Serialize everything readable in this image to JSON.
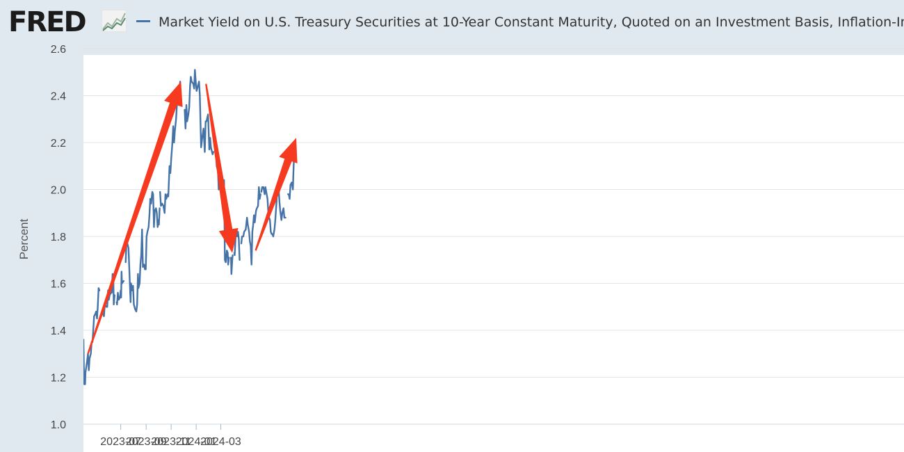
{
  "header": {
    "logo_text": "FRED",
    "logo_icon": "line-graph-icon"
  },
  "chart_data": {
    "type": "line",
    "title": "",
    "xlabel": "",
    "ylabel": "Percent",
    "ylim": [
      1.0,
      2.6
    ],
    "xlim": [
      "2023-04-01",
      "2024-04-18"
    ],
    "y_ticks": [
      "1.0",
      "1.2",
      "1.4",
      "1.6",
      "1.8",
      "2.0",
      "2.2",
      "2.4",
      "2.6"
    ],
    "x_ticks": [
      "2023-07",
      "2023-09",
      "2023-11",
      "2024-01",
      "2024-03"
    ],
    "grid": true,
    "legend": {
      "position": "top",
      "entries": [
        "Market Yield on U.S. Treasury Securities at 10-Year Constant Maturity, Quoted on an Investment Basis, Inflation-Indexed"
      ]
    },
    "series": [
      {
        "name": "Market Yield on U.S. Treasury Securities at 10-Year Constant Maturity, Quoted on an Investment Basis, Inflation-Indexed",
        "color": "#4572a7",
        "points": [
          [
            "2023-04-01",
            1.36
          ],
          [
            "2023-04-02",
            1.24
          ],
          [
            "2023-04-03",
            1.17
          ],
          [
            "2023-04-05",
            1.17
          ],
          [
            "2023-04-06",
            1.22
          ],
          [
            "2023-04-10",
            1.27
          ],
          [
            "2023-04-12",
            1.3
          ],
          [
            "2023-04-14",
            1.23
          ],
          [
            "2023-04-16",
            1.28
          ],
          [
            "2023-04-19",
            1.3
          ],
          [
            "2023-04-21",
            1.35
          ],
          [
            "2023-04-23",
            1.35
          ],
          [
            "2023-04-25",
            1.4
          ],
          [
            "2023-04-27",
            1.46
          ],
          [
            "2023-04-30",
            1.47
          ],
          [
            "2023-05-02",
            1.48
          ],
          [
            "2023-05-04",
            1.45
          ],
          [
            "2023-05-06",
            1.5
          ],
          [
            "2023-05-08",
            1.58
          ],
          [
            "2023-05-10",
            1.57
          ],
          null,
          [
            "2023-05-19",
            1.47
          ],
          [
            "2023-05-21",
            1.46
          ],
          [
            "2023-05-23",
            1.51
          ],
          [
            "2023-05-27",
            1.5
          ],
          [
            "2023-05-29",
            1.5
          ],
          [
            "2023-05-31",
            1.57
          ],
          [
            "2023-06-02",
            1.53
          ],
          [
            "2023-06-04",
            1.55
          ],
          [
            "2023-06-07",
            1.56
          ],
          [
            "2023-06-09",
            1.56
          ],
          [
            "2023-06-11",
            1.64
          ],
          [
            "2023-06-13",
            1.62
          ],
          [
            "2023-06-14",
            1.51
          ],
          [
            "2023-06-16",
            1.55
          ],
          null,
          [
            "2023-06-21",
            1.52
          ],
          [
            "2023-06-22",
            1.51
          ],
          [
            "2023-06-24",
            1.56
          ],
          [
            "2023-06-26",
            1.53
          ],
          [
            "2023-06-29",
            1.54
          ],
          [
            "2023-07-01",
            1.57
          ],
          [
            "2023-07-02",
            1.54
          ],
          [
            "2023-07-03",
            1.65
          ],
          [
            "2023-07-04",
            1.6
          ],
          [
            "2023-07-08",
            1.61
          ],
          null,
          [
            "2023-07-13",
            1.69
          ],
          [
            "2023-07-15",
            1.78
          ],
          [
            "2023-07-17",
            1.77
          ],
          [
            "2023-07-20",
            1.75
          ],
          [
            "2023-07-23",
            1.61
          ],
          [
            "2023-07-25",
            1.52
          ],
          [
            "2023-07-26",
            1.6
          ],
          [
            "2023-07-29",
            1.57
          ],
          [
            "2023-07-31",
            1.59
          ],
          [
            "2023-08-02",
            1.51
          ],
          [
            "2023-08-05",
            1.49
          ],
          [
            "2023-08-08",
            1.48
          ],
          [
            "2023-08-10",
            1.51
          ],
          [
            "2023-08-12",
            1.64
          ],
          [
            "2023-08-13",
            1.58
          ],
          [
            "2023-08-16",
            1.6
          ],
          [
            "2023-08-18",
            1.68
          ],
          [
            "2023-08-20",
            1.72
          ],
          [
            "2023-08-22",
            1.83
          ],
          [
            "2023-08-24",
            1.67
          ],
          [
            "2023-08-27",
            1.68
          ],
          [
            "2023-08-29",
            1.66
          ],
          [
            "2023-08-31",
            1.66
          ],
          [
            "2023-09-02",
            1.8
          ],
          [
            "2023-09-04",
            1.82
          ],
          [
            "2023-09-07",
            1.84
          ],
          [
            "2023-09-09",
            1.89
          ],
          [
            "2023-09-11",
            1.96
          ],
          [
            "2023-09-13",
            1.94
          ],
          [
            "2023-09-16",
            1.99
          ],
          [
            "2023-09-18",
            1.98
          ],
          [
            "2023-09-20",
            1.84
          ],
          [
            "2023-09-22",
            1.91
          ],
          [
            "2023-09-25",
            1.92
          ],
          [
            "2023-09-27",
            1.9
          ],
          [
            "2023-09-29",
            1.84
          ],
          [
            "2023-10-01",
            1.87
          ],
          [
            "2023-10-02",
            1.85
          ],
          [
            "2023-10-04",
            1.92
          ],
          null,
          [
            "2023-10-05",
            1.99
          ],
          [
            "2023-10-07",
            1.93
          ],
          [
            "2023-10-10",
            1.94
          ],
          [
            "2023-10-13",
            1.93
          ],
          [
            "2023-10-16",
            1.9
          ],
          [
            "2023-10-18",
            1.98
          ],
          [
            "2023-10-20",
            1.96
          ],
          [
            "2023-10-23",
            1.98
          ],
          [
            "2023-10-25",
            1.97
          ],
          [
            "2023-10-28",
            2.1
          ],
          [
            "2023-10-30",
            2.07
          ],
          [
            "2023-11-01",
            2.13
          ],
          [
            "2023-11-04",
            2.2
          ],
          [
            "2023-11-06",
            2.27
          ],
          [
            "2023-11-08",
            2.2
          ],
          [
            "2023-11-10",
            2.25
          ],
          [
            "2023-11-13",
            2.3
          ],
          [
            "2023-11-15",
            2.36
          ],
          [
            "2023-11-17",
            2.41
          ],
          [
            "2023-11-19",
            2.39
          ],
          [
            "2023-11-21",
            2.42
          ],
          [
            "2023-11-23",
            2.46
          ],
          null,
          [
            "2023-12-04",
            2.34
          ],
          [
            "2023-12-06",
            2.26
          ],
          [
            "2023-12-08",
            2.36
          ],
          [
            "2023-12-10",
            2.29
          ],
          [
            "2023-12-13",
            2.32
          ],
          [
            "2023-12-15",
            2.35
          ],
          [
            "2023-12-17",
            2.44
          ],
          [
            "2023-12-19",
            2.48
          ],
          [
            "2023-12-21",
            2.46
          ],
          [
            "2023-12-25",
            2.45
          ],
          [
            "2023-12-27",
            2.43
          ],
          [
            "2023-12-29",
            2.51
          ],
          [
            "2023-12-31",
            2.46
          ],
          [
            "2024-01-02",
            2.42
          ],
          [
            "2024-01-05",
            2.44
          ],
          [
            "2024-01-08",
            2.46
          ],
          [
            "2024-01-10",
            2.4
          ],
          [
            "2024-01-13",
            2.18
          ],
          [
            "2024-01-15",
            2.21
          ],
          [
            "2024-01-19",
            2.26
          ],
          [
            "2024-01-22",
            2.16
          ],
          [
            "2024-01-24",
            2.29
          ],
          [
            "2024-01-26",
            2.29
          ],
          [
            "2024-01-30",
            2.32
          ],
          [
            "2024-02-02",
            2.17
          ],
          [
            "2024-02-04",
            2.22
          ],
          [
            "2024-02-06",
            2.18
          ],
          [
            "2024-02-10",
            2.15
          ],
          [
            "2024-02-12",
            2.16
          ],
          null,
          [
            "2024-02-15",
            2.19
          ],
          [
            "2024-02-17",
            2.22
          ],
          [
            "2024-02-20",
            2.1
          ],
          [
            "2024-02-23",
            2.08
          ],
          [
            "2024-02-25",
            2.0
          ],
          [
            "2024-02-27",
            2.05
          ],
          [
            "2024-03-01",
            2.02
          ],
          [
            "2024-03-04",
            2.01
          ],
          [
            "2024-03-06",
            2.04
          ],
          [
            "2024-03-09",
            2.04
          ],
          [
            "2024-03-11",
            1.7
          ],
          [
            "2024-03-13",
            1.69
          ],
          [
            "2024-03-16",
            1.74
          ],
          [
            "2024-03-18",
            1.73
          ],
          [
            "2024-03-19",
            1.68
          ],
          [
            "2024-03-21",
            1.71
          ],
          null,
          [
            "2024-03-26",
            1.71
          ],
          [
            "2024-03-27",
            1.64
          ],
          [
            "2024-03-29",
            1.7
          ],
          [
            "2024-03-30",
            1.72
          ],
          null,
          [
            "2024-04-03",
            1.73
          ],
          [
            "2024-04-04",
            1.72
          ],
          [
            "2024-04-07",
            1.83
          ],
          [
            "2024-04-10",
            1.8
          ],
          [
            "2024-04-12",
            1.82
          ],
          [
            "2024-04-14",
            1.79
          ],
          [
            "2024-04-16",
            1.7
          ],
          null,
          [
            "2024-04-20",
            1.77
          ],
          [
            "2024-04-22",
            1.8
          ],
          [
            "2024-04-25",
            1.8
          ],
          [
            "2024-04-27",
            1.82
          ],
          [
            "2024-05-01",
            1.83
          ],
          [
            "2024-05-04",
            1.88
          ],
          [
            "2024-05-06",
            1.85
          ],
          [
            "2024-05-09",
            1.82
          ],
          [
            "2024-05-11",
            1.78
          ],
          [
            "2024-05-13",
            1.76
          ],
          [
            "2024-05-15",
            1.68
          ],
          [
            "2024-05-17",
            1.82
          ],
          [
            "2024-05-19",
            1.85
          ],
          [
            "2024-05-21",
            1.89
          ],
          [
            "2024-05-23",
            1.86
          ],
          [
            "2024-05-26",
            1.91
          ],
          [
            "2024-05-28",
            1.92
          ],
          [
            "2024-05-31",
            1.93
          ],
          [
            "2024-06-02",
            2.01
          ],
          [
            "2024-06-04",
            1.96
          ],
          [
            "2024-06-06",
            1.98
          ],
          null,
          [
            "2024-06-08",
            1.99
          ],
          [
            "2024-06-10",
            2.01
          ],
          [
            "2024-06-13",
            2.01
          ],
          [
            "2024-06-14",
            2.0
          ],
          [
            "2024-06-16",
            1.98
          ],
          [
            "2024-06-18",
            2.01
          ],
          [
            "2024-06-21",
            1.98
          ],
          [
            "2024-06-23",
            1.96
          ],
          [
            "2024-06-25",
            1.9
          ],
          [
            "2024-06-27",
            1.88
          ],
          [
            "2024-06-29",
            1.87
          ],
          [
            "2024-07-01",
            1.82
          ],
          [
            "2024-07-03",
            1.81
          ],
          [
            "2024-07-05",
            1.81
          ],
          [
            "2024-07-07",
            1.8
          ],
          [
            "2024-07-10",
            1.83
          ],
          [
            "2024-07-12",
            1.87
          ],
          [
            "2024-07-15",
            1.95
          ],
          [
            "2024-07-17",
            2.0
          ],
          [
            "2024-07-20",
            2.01
          ],
          [
            "2024-07-22",
            1.95
          ],
          [
            "2024-07-24",
            1.91
          ],
          [
            "2024-07-27",
            1.87
          ],
          [
            "2024-07-29",
            1.9
          ],
          [
            "2024-08-01",
            1.92
          ],
          [
            "2024-08-03",
            1.88
          ],
          [
            "2024-08-06",
            1.88
          ],
          null,
          [
            "2024-08-12",
            1.98
          ],
          [
            "2024-08-14",
            1.98
          ],
          [
            "2024-08-16",
            1.96
          ],
          [
            "2024-08-18",
            2.02
          ],
          [
            "2024-08-21",
            2.03
          ],
          [
            "2024-08-24",
            2.0
          ],
          [
            "2024-08-25",
            2.06
          ],
          [
            "2024-08-26",
            2.11
          ],
          [
            "2024-08-27",
            2.14
          ],
          [
            "2024-08-29",
            2.12
          ],
          [
            "2024-08-31",
            2.18
          ]
        ]
      }
    ],
    "annotations": [
      {
        "type": "arrow",
        "color": "#f53a1f",
        "from": [
          "2023-04-12",
          1.3
        ],
        "to": [
          "2023-11-25",
          2.46
        ]
      },
      {
        "type": "arrow",
        "color": "#f53a1f",
        "from": [
          "2024-01-25",
          2.45
        ],
        "to": [
          "2024-03-29",
          1.73
        ]
      },
      {
        "type": "arrow",
        "color": "#f53a1f",
        "from": [
          "2024-05-25",
          1.74
        ],
        "to": [
          "2024-09-01",
          2.22
        ]
      }
    ]
  }
}
